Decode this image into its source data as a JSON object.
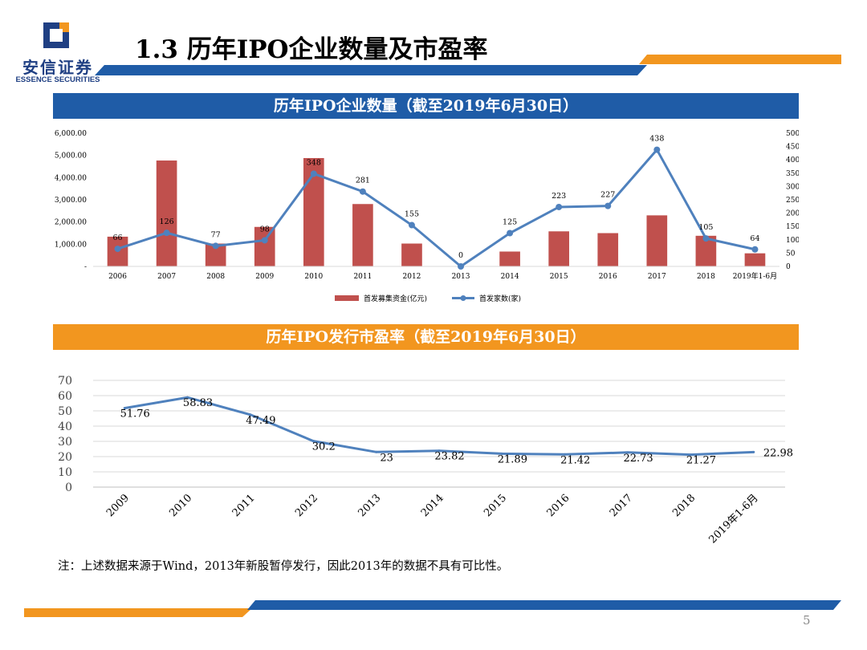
{
  "logo": {
    "name_cn": "安信证券",
    "name_en": "ESSENCE SECURITIES"
  },
  "page_title": "1.3 历年IPO企业数量及市盈率",
  "page_number": "5",
  "note": "注：上述数据来源于Wind，2013年新股暂停发行，因此2013年的数据不具有可比性。",
  "colors": {
    "blue": "#1f5ca7",
    "orange": "#f2961f",
    "bar_red": "#c0504d",
    "line_blue": "#4f81bd"
  },
  "chart_data": [
    {
      "type": "bar+line",
      "title": "历年IPO企业数量（截至2019年6月30日）",
      "categories": [
        "2006",
        "2007",
        "2008",
        "2009",
        "2010",
        "2011",
        "2012",
        "2013",
        "2014",
        "2015",
        "2016",
        "2017",
        "2018",
        "2019年1-6月"
      ],
      "series": [
        {
          "name": "首发募集资金(亿元)",
          "type": "bar",
          "axis": "left",
          "values": [
            1340,
            4770,
            1030,
            1780,
            4880,
            2810,
            1030,
            0,
            670,
            1580,
            1500,
            2300,
            1380,
            590
          ]
        },
        {
          "name": "首发家数(家)",
          "type": "line",
          "axis": "right",
          "values": [
            66,
            126,
            77,
            98,
            348,
            281,
            155,
            0,
            125,
            223,
            227,
            438,
            105,
            64
          ],
          "labels": [
            "66",
            "126",
            "77",
            "98",
            "348",
            "281",
            "155",
            "0",
            "125",
            "223",
            "227",
            "438",
            "105",
            "64"
          ]
        }
      ],
      "y_left": {
        "ylim": [
          0,
          6000
        ],
        "ticks": [
          "-",
          "1,000.00",
          "2,000.00",
          "3,000.00",
          "4,000.00",
          "5,000.00",
          "6,000.00"
        ]
      },
      "y_right": {
        "ylim": [
          0,
          500
        ],
        "ticks": [
          "0",
          "50",
          "100",
          "150",
          "200",
          "250",
          "300",
          "350",
          "400",
          "450",
          "500"
        ]
      },
      "legend": "bottom"
    },
    {
      "type": "line",
      "title": "历年IPO发行市盈率（截至2019年6月30日）",
      "categories": [
        "2009",
        "2010",
        "2011",
        "2012",
        "2013",
        "2014",
        "2015",
        "2016",
        "2017",
        "2018",
        "2019年1-6月"
      ],
      "values": [
        51.76,
        58.83,
        47.49,
        30.2,
        23,
        23.82,
        21.89,
        21.42,
        22.73,
        21.27,
        22.98
      ],
      "labels": [
        "51.76",
        "58.83",
        "47.49",
        "30.2",
        "23",
        "23.82",
        "21.89",
        "21.42",
        "22.73",
        "21.27",
        "22.98"
      ],
      "ylim": [
        0,
        70
      ],
      "yticks": [
        "0",
        "10",
        "20",
        "30",
        "40",
        "50",
        "60",
        "70"
      ],
      "grid": true
    }
  ]
}
